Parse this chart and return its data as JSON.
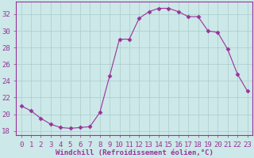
{
  "x": [
    0,
    1,
    2,
    3,
    4,
    5,
    6,
    7,
    8,
    9,
    10,
    11,
    12,
    13,
    14,
    15,
    16,
    17,
    18,
    19,
    20,
    21,
    22,
    23
  ],
  "y": [
    21.0,
    20.4,
    19.5,
    18.8,
    18.4,
    18.3,
    18.4,
    18.5,
    20.2,
    24.6,
    29.0,
    29.0,
    31.5,
    32.3,
    32.7,
    32.7,
    32.3,
    31.7,
    31.7,
    30.0,
    29.8,
    27.8,
    24.8,
    22.8
  ],
  "line_color": "#993399",
  "marker": "D",
  "marker_size": 2.5,
  "bg_color": "#cce8e8",
  "grid_color": "#aacccc",
  "xlabel": "Windchill (Refroidissement éolien,°C)",
  "xlabel_color": "#993399",
  "tick_color": "#993399",
  "axis_color": "#993399",
  "ylim": [
    17.5,
    33.5
  ],
  "xlim": [
    -0.5,
    23.5
  ],
  "yticks": [
    18,
    20,
    22,
    24,
    26,
    28,
    30,
    32
  ],
  "xticks": [
    0,
    1,
    2,
    3,
    4,
    5,
    6,
    7,
    8,
    9,
    10,
    11,
    12,
    13,
    14,
    15,
    16,
    17,
    18,
    19,
    20,
    21,
    22,
    23
  ],
  "xlabel_fontsize": 6.5,
  "tick_fontsize": 6.5
}
